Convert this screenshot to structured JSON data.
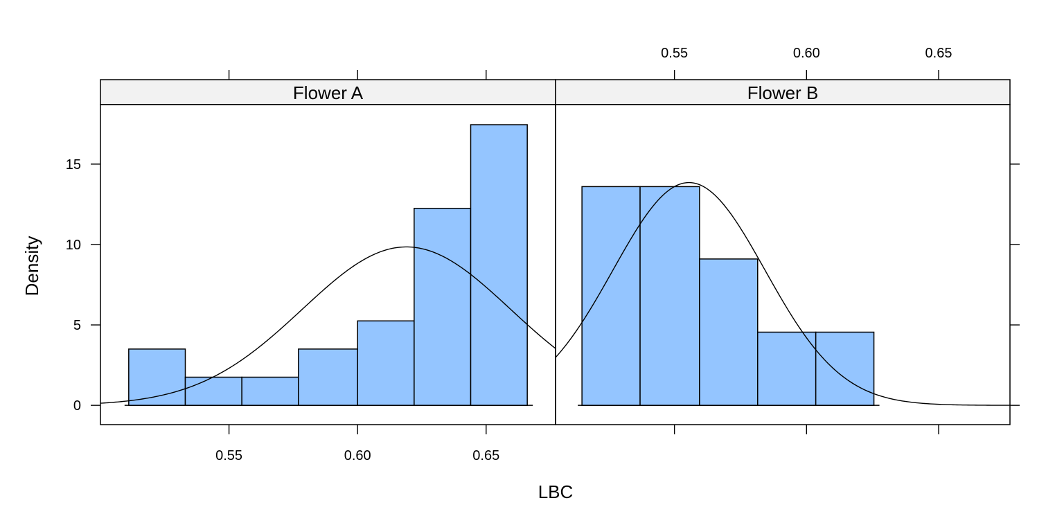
{
  "chart_data": {
    "type": "bar",
    "xlabel": "LBC",
    "ylabel": "Density",
    "ylim": [
      -1.2,
      18.7
    ],
    "y_ticks": [
      0,
      5,
      10,
      15
    ],
    "y_tick_labels": [
      "0",
      "5",
      "10",
      "15"
    ],
    "x_tick_labels": [
      "0.55",
      "0.60",
      "0.65"
    ],
    "x_tick_placement": "panel A ticks drawn on bottom axis, panel B ticks drawn on top axis",
    "bar_color": "#94C5FF",
    "strip_color": "#F2F2F2",
    "panels": [
      {
        "name": "Flower A",
        "xlim": [
          0.5,
          0.677
        ],
        "x_ticks": [
          0.55,
          0.6,
          0.65
        ],
        "bins": [
          0.511,
          0.533,
          0.555,
          0.577,
          0.6,
          0.622,
          0.644,
          0.666
        ],
        "densities": [
          3.5,
          1.75,
          1.75,
          3.5,
          5.25,
          12.25,
          17.45
        ],
        "normal_curve": {
          "mean": 0.619,
          "sd": 0.0405
        }
      },
      {
        "name": "Flower B",
        "xlim": [
          0.505,
          0.677
        ],
        "x_ticks": [
          0.55,
          0.6,
          0.65
        ],
        "bins": [
          0.515,
          0.537,
          0.5595,
          0.5815,
          0.6035,
          0.6255
        ],
        "densities": [
          13.6,
          13.6,
          9.1,
          4.55,
          4.55
        ],
        "normal_curve": {
          "mean": 0.5555,
          "sd": 0.0288
        }
      }
    ]
  }
}
